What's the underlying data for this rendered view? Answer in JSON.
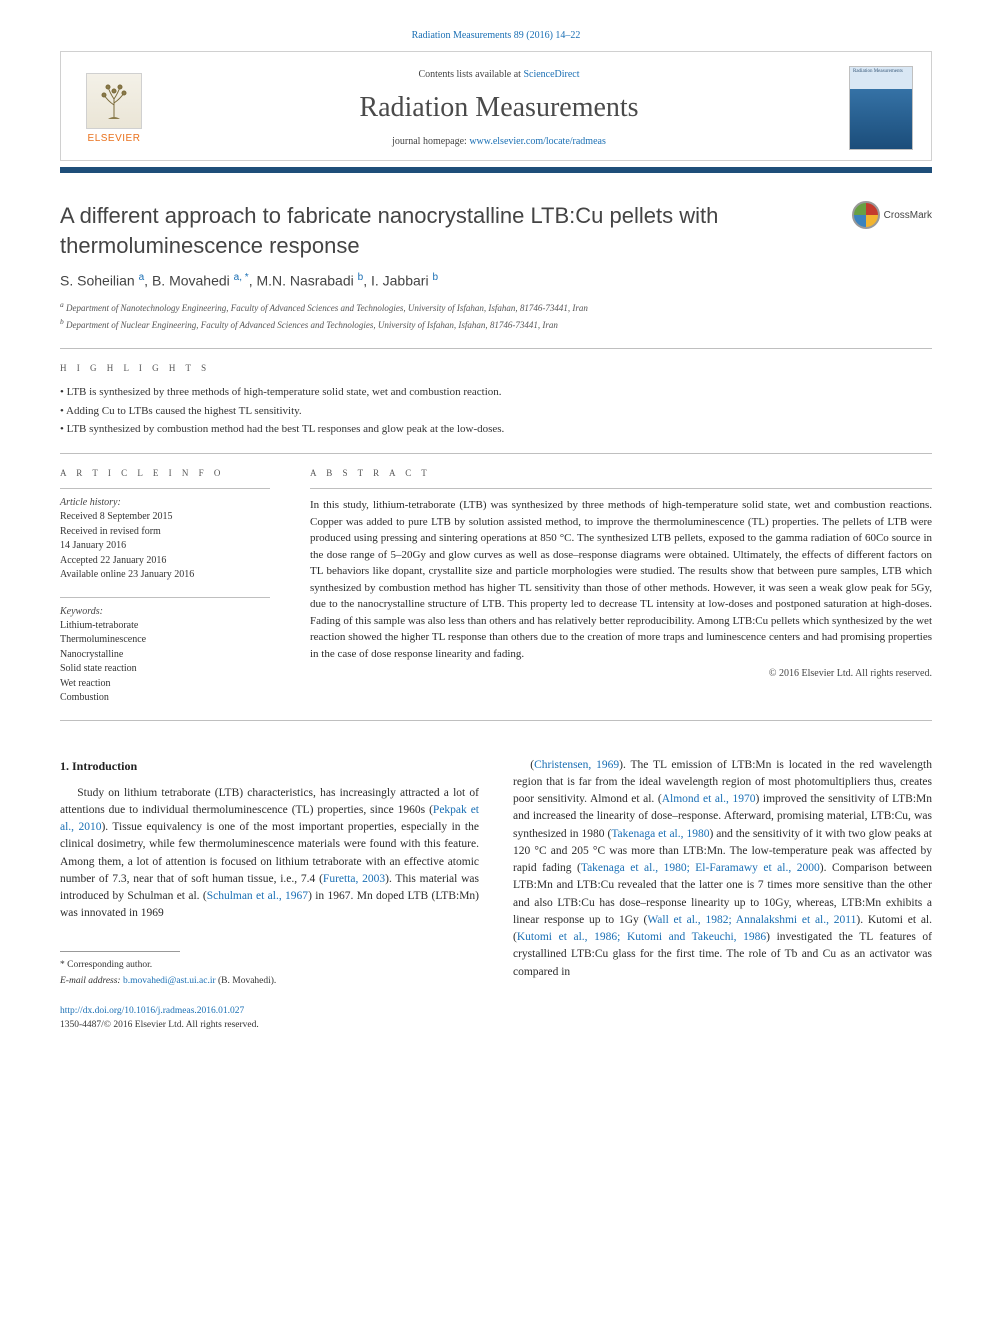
{
  "journal_ref": "Radiation Measurements 89 (2016) 14–22",
  "masthead": {
    "contents_prefix": "Contents lists available at ",
    "contents_link": "ScienceDirect",
    "journal_title": "Radiation Measurements",
    "homepage_prefix": "journal homepage: ",
    "homepage_url": "www.elsevier.com/locate/radmeas",
    "publisher_logo_text": "ELSEVIER",
    "cover_label": "Radiation Measurements"
  },
  "colors": {
    "title_bar": "#1e4e79",
    "link": "#1a6fb4",
    "elsevier_orange": "#e9711c",
    "text": "#2b2b2b",
    "rule": "#bfbfbf"
  },
  "crossmark_label": "CrossMark",
  "article": {
    "title": "A different approach to fabricate nanocrystalline LTB:Cu pellets with thermoluminescence response",
    "authors_html": "S. Soheilian <sup>a</sup>, B. Movahedi <sup>a, *</sup>, M.N. Nasrabadi <sup>b</sup>, I. Jabbari <sup>b</sup>",
    "affiliations": [
      "a Department of Nanotechnology Engineering, Faculty of Advanced Sciences and Technologies, University of Isfahan, Isfahan, 81746-73441, Iran",
      "b Department of Nuclear Engineering, Faculty of Advanced Sciences and Technologies, University of Isfahan, Isfahan, 81746-73441, Iran"
    ]
  },
  "highlights": {
    "label": "H I G H L I G H T S",
    "items": [
      "LTB is synthesized by three methods of high-temperature solid state, wet and combustion reaction.",
      "Adding Cu to LTBs caused the highest TL sensitivity.",
      "LTB synthesized by combustion method had the best TL responses and glow peak at the low-doses."
    ]
  },
  "article_info": {
    "label": "A R T I C L E   I N F O",
    "history_label": "Article history:",
    "history": [
      "Received 8 September 2015",
      "Received in revised form",
      "14 January 2016",
      "Accepted 22 January 2016",
      "Available online 23 January 2016"
    ],
    "keywords_label": "Keywords:",
    "keywords": [
      "Lithium-tetraborate",
      "Thermoluminescence",
      "Nanocrystalline",
      "Solid state reaction",
      "Wet reaction",
      "Combustion"
    ]
  },
  "abstract": {
    "label": "A B S T R A C T",
    "text": "In this study, lithium-tetraborate (LTB) was synthesized by three methods of high-temperature solid state, wet and combustion reactions. Copper was added to pure LTB by solution assisted method, to improve the thermoluminescence (TL) properties. The pellets of LTB were produced using pressing and sintering operations at 850 °C. The synthesized LTB pellets, exposed to the gamma radiation of 60Co source in the dose range of 5–20Gy and glow curves as well as dose–response diagrams were obtained. Ultimately, the effects of different factors on TL behaviors like dopant, crystallite size and particle morphologies were studied. The results show that between pure samples, LTB which synthesized by combustion method has higher TL sensitivity than those of other methods. However, it was seen a weak glow peak for 5Gy, due to the nanocrystalline structure of LTB. This property led to decrease TL intensity at low-doses and postponed saturation at high-doses. Fading of this sample was also less than others and has relatively better reproducibility. Among LTB:Cu pellets which synthesized by the wet reaction showed the higher TL response than others due to the creation of more traps and luminescence centers and had promising properties in the case of dose response linearity and fading.",
    "copyright": "© 2016 Elsevier Ltd. All rights reserved."
  },
  "body": {
    "section_number": "1.",
    "section_title": "Introduction",
    "col1": "Study on lithium tetraborate (LTB) characteristics, has increasingly attracted a lot of attentions due to individual thermoluminescence (TL) properties, since 1960s (Pekpak et al., 2010). Tissue equivalency is one of the most important properties, especially in the clinical dosimetry, while few thermoluminescence materials were found with this feature. Among them, a lot of attention is focused on lithium tetraborate with an effective atomic number of 7.3, near that of soft human tissue, i.e., 7.4 (Furetta, 2003). This material was introduced by Schulman et al. (Schulman et al., 1967) in 1967. Mn doped LTB (LTB:Mn) was innovated in 1969",
    "col2": "(Christensen, 1969). The TL emission of LTB:Mn is located in the red wavelength region that is far from the ideal wavelength region of most photomultipliers thus, creates poor sensitivity. Almond et al. (Almond et al., 1970) improved the sensitivity of LTB:Mn and increased the linearity of dose–response. Afterward, promising material, LTB:Cu, was synthesized in 1980 (Takenaga et al., 1980) and the sensitivity of it with two glow peaks at 120 °C and 205 °C was more than LTB:Mn. The low-temperature peak was affected by rapid fading (Takenaga et al., 1980; El-Faramawy et al., 2000). Comparison between LTB:Mn and LTB:Cu revealed that the latter one is 7 times more sensitive than the other and also LTB:Cu has dose–response linearity up to 10Gy, whereas, LTB:Mn exhibits a linear response up to 1Gy (Wall et al., 1982; Annalakshmi et al., 2011). Kutomi et al. (Kutomi et al., 1986; Kutomi and Takeuchi, 1986) investigated the TL features of crystallined LTB:Cu glass for the first time. The role of Tb and Cu as an activator was compared in",
    "citations_col1": [
      "Pekpak et al., 2010",
      "Furetta, 2003",
      "Schulman et al., 1967"
    ],
    "citations_col2": [
      "Christensen, 1969",
      "Almond et al., 1970",
      "Takenaga et al., 1980",
      "Takenaga et al., 1980; El-Faramawy et al., 2000",
      "Wall et al., 1982; Annalakshmi et al., 2011",
      "Kutomi et al., 1986; Kutomi and Takeuchi, 1986"
    ]
  },
  "footer": {
    "corr_label": "* Corresponding author.",
    "email_label": "E-mail address: ",
    "email": "b.movahedi@ast.ui.ac.ir",
    "email_author": " (B. Movahedi).",
    "doi": "http://dx.doi.org/10.1016/j.radmeas.2016.01.027",
    "issn_line": "1350-4487/© 2016 Elsevier Ltd. All rights reserved."
  }
}
